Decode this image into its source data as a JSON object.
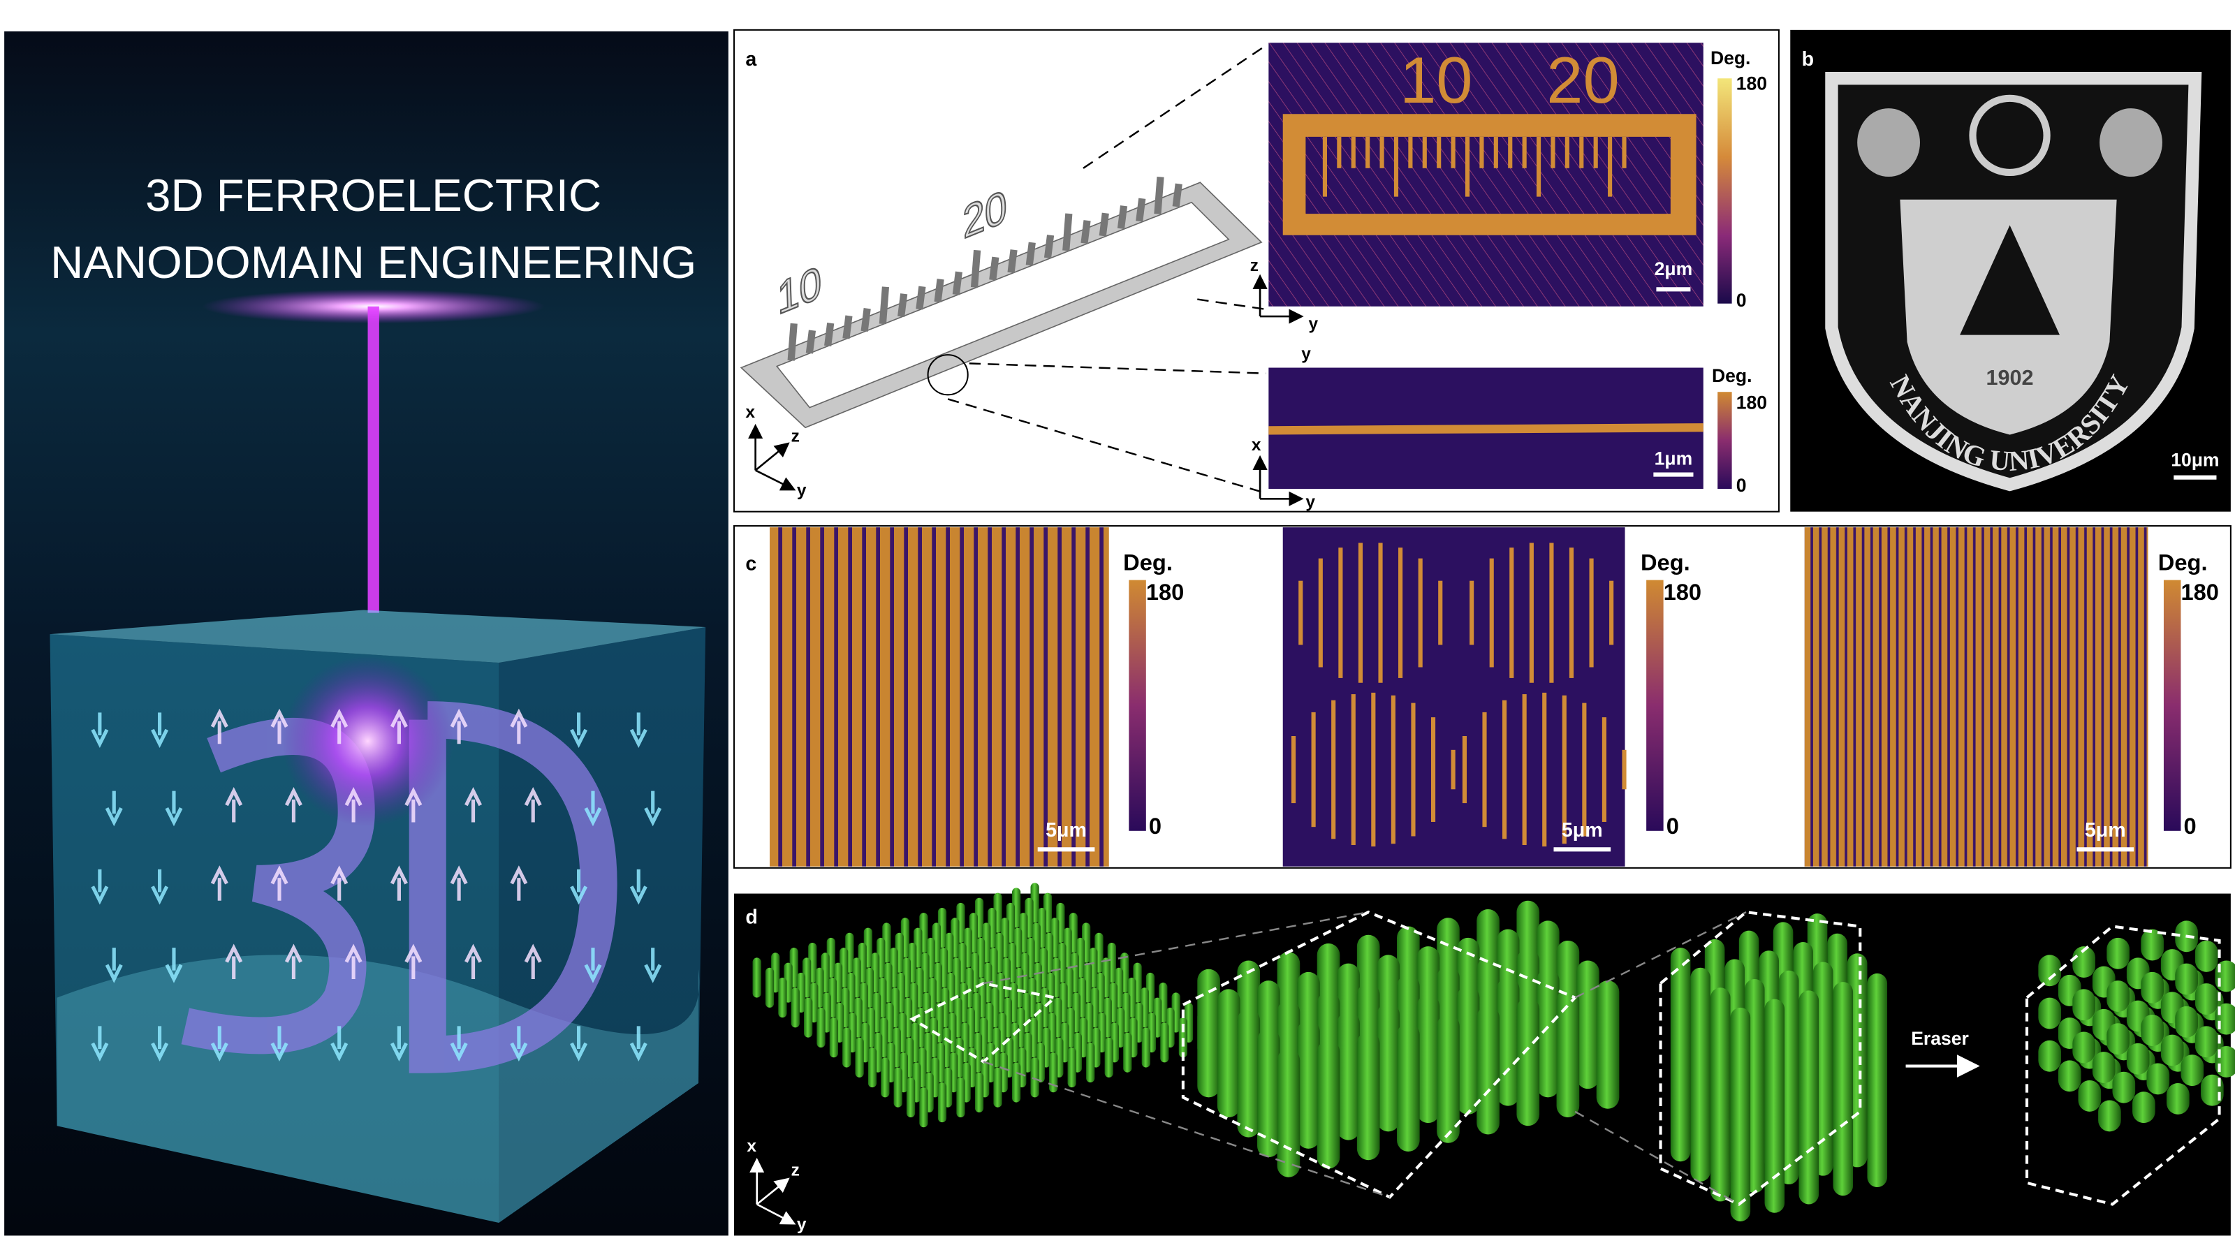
{
  "cover": {
    "title_lines": [
      "3D FERROELECTRIC",
      "NANODOMAIN ENGINEERING"
    ]
  },
  "panel_a": {
    "label": "a",
    "schematic": {
      "digits": [
        10,
        20
      ],
      "axes": [
        "x",
        "z",
        "y"
      ]
    },
    "inset_top": {
      "colorbar_title": "Deg.",
      "colorbar_max": 180,
      "colorbar_min": 0,
      "scale_bar": "2μm",
      "axes": [
        "z",
        "y",
        "y"
      ]
    },
    "inset_bottom": {
      "colorbar_title": "Deg.",
      "colorbar_max": 180,
      "colorbar_min": 0,
      "scale_bar": "1μm",
      "axes": [
        "x",
        "y"
      ]
    }
  },
  "panel_b": {
    "label": "b",
    "logo_text": "NANJING UNIVERSITY",
    "logo_year": "1902",
    "scale_bar": "10μm"
  },
  "panel_c": {
    "label": "c",
    "images": [
      {
        "colorbar_title": "Deg.",
        "colorbar_max": 180,
        "colorbar_min": 0,
        "scale_bar": "5μm"
      },
      {
        "colorbar_title": "Deg.",
        "colorbar_max": 180,
        "colorbar_min": 0,
        "scale_bar": "5μm"
      },
      {
        "colorbar_title": "Deg.",
        "colorbar_max": 180,
        "colorbar_min": 0,
        "scale_bar": "5μm"
      }
    ]
  },
  "panel_d": {
    "label": "d",
    "arrow_label": "Eraser",
    "axes": [
      "x",
      "z",
      "y"
    ]
  }
}
